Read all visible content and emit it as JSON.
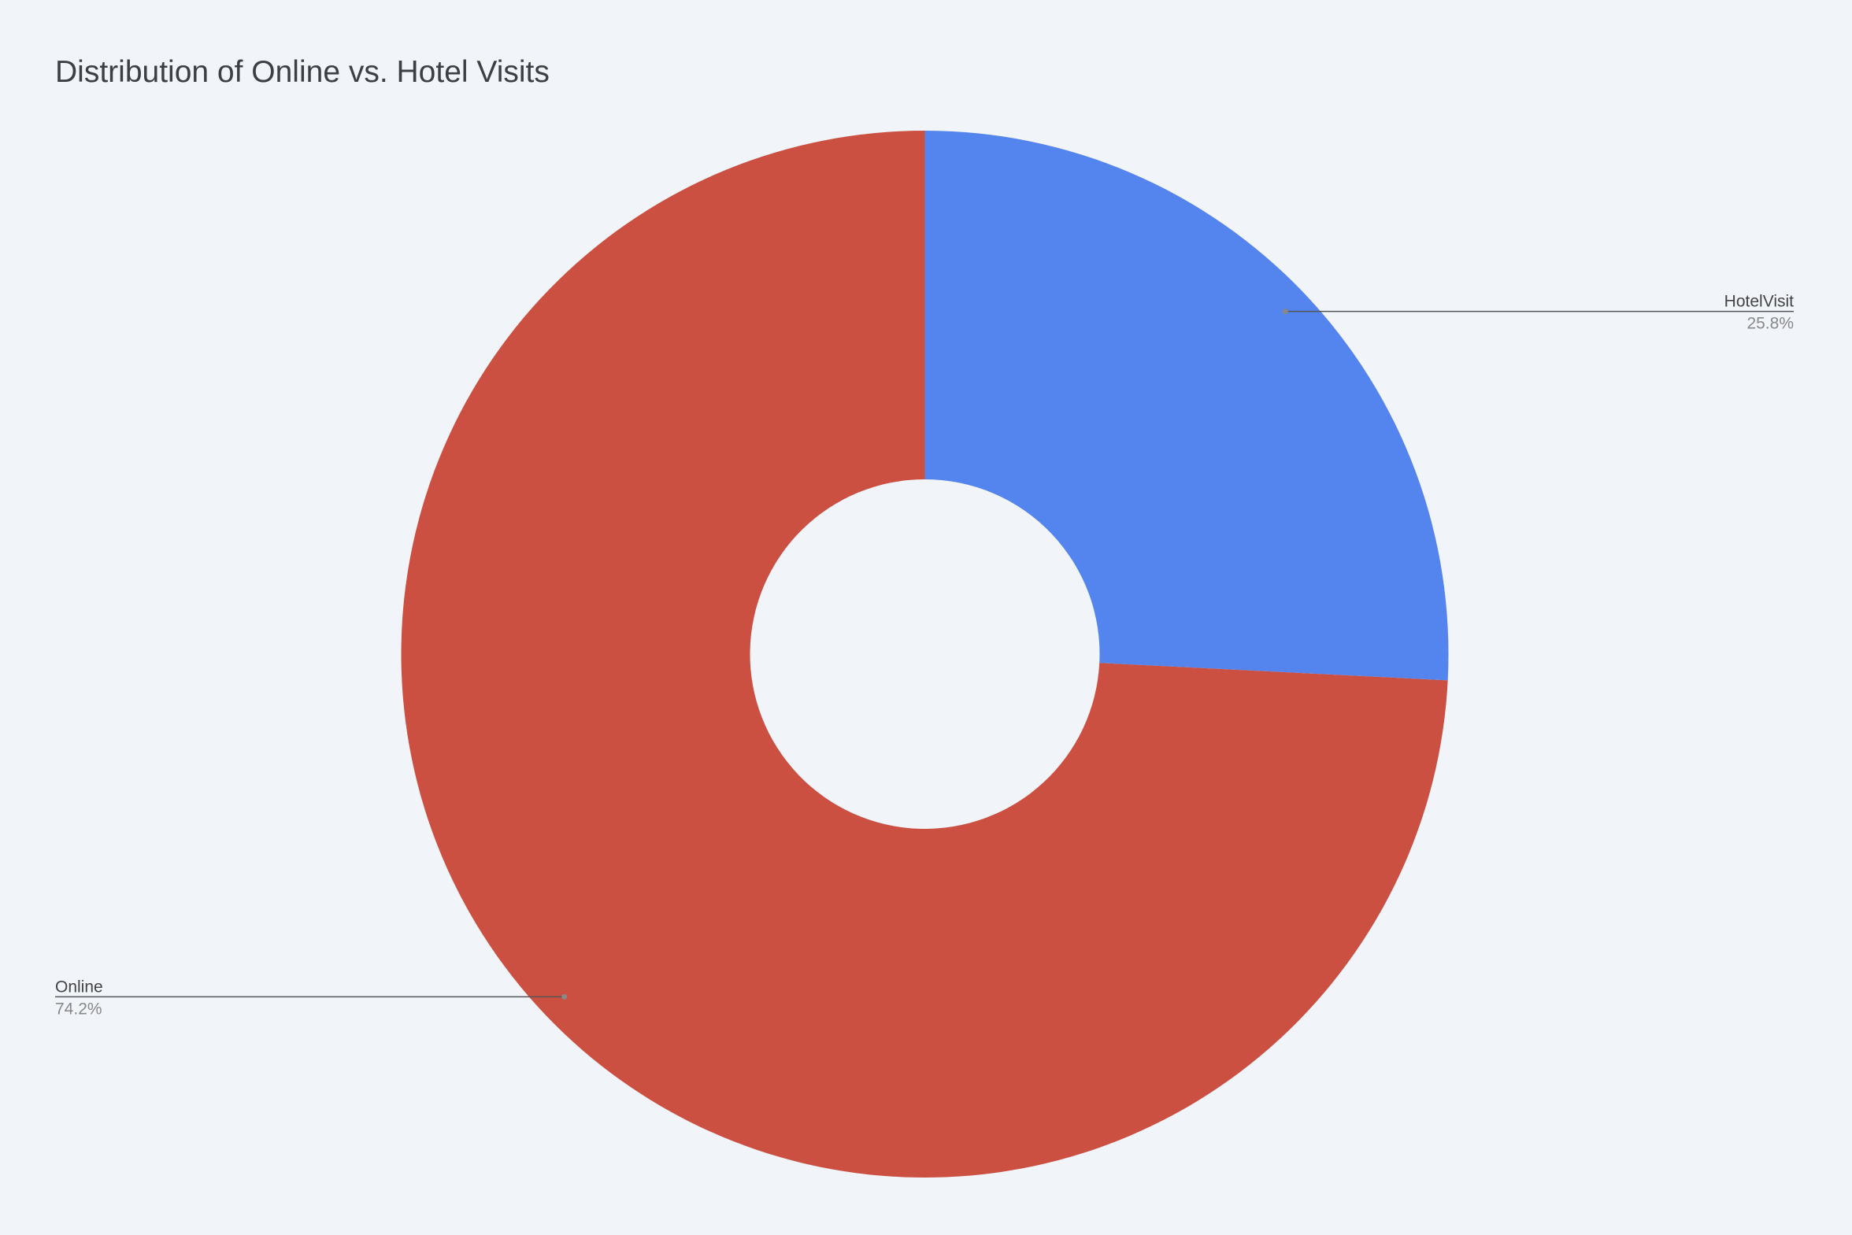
{
  "chart_data": {
    "type": "pie",
    "title": "Distribution of Online vs. Hotel Visits",
    "categories": [
      "HotelVisit",
      "Online"
    ],
    "values": [
      25.8,
      74.2
    ],
    "value_labels": [
      "25.8%",
      "74.2%"
    ],
    "colors": [
      "#5484ed",
      "#cb5041"
    ],
    "hole": true
  }
}
